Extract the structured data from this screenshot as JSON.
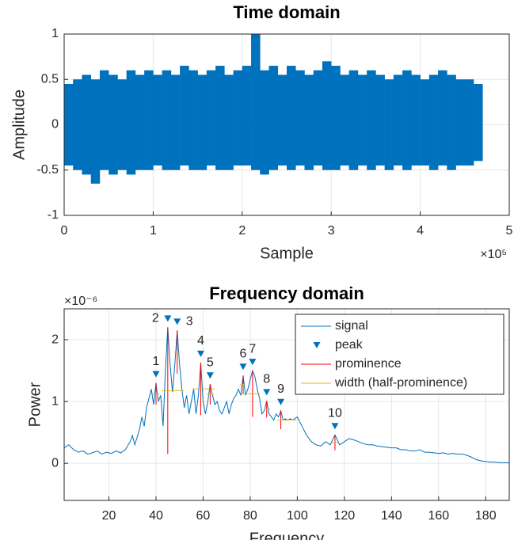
{
  "chart_data": [
    {
      "type": "envelope",
      "title": "Time domain",
      "xlabel": "Sample",
      "ylabel": "Amplitude",
      "x_multiplier": "×10⁵",
      "color": "#0072BD",
      "grid": true,
      "xlim": [
        0,
        5
      ],
      "xticks": [
        0,
        1,
        2,
        3,
        4,
        5
      ],
      "ylim": [
        -1,
        1
      ],
      "yticks": [
        -1,
        -0.5,
        0,
        0.5,
        1
      ],
      "x": [
        0,
        0.1,
        0.2,
        0.3,
        0.4,
        0.5,
        0.6,
        0.7,
        0.8,
        0.9,
        1,
        1.1,
        1.2,
        1.3,
        1.4,
        1.5,
        1.6,
        1.7,
        1.8,
        1.9,
        2,
        2.1,
        2.2,
        2.3,
        2.4,
        2.5,
        2.6,
        2.7,
        2.8,
        2.9,
        3,
        3.1,
        3.2,
        3.3,
        3.4,
        3.5,
        3.6,
        3.7,
        3.8,
        3.9,
        4,
        4.1,
        4.2,
        4.3,
        4.4,
        4.5,
        4.6
      ],
      "upper": [
        0.45,
        0.5,
        0.55,
        0.5,
        0.6,
        0.55,
        0.5,
        0.6,
        0.55,
        0.6,
        0.55,
        0.6,
        0.55,
        0.65,
        0.6,
        0.55,
        0.6,
        0.65,
        0.55,
        0.6,
        0.65,
        1.0,
        0.6,
        0.65,
        0.55,
        0.65,
        0.6,
        0.55,
        0.6,
        0.7,
        0.65,
        0.55,
        0.6,
        0.55,
        0.6,
        0.55,
        0.5,
        0.55,
        0.6,
        0.55,
        0.5,
        0.55,
        0.6,
        0.55,
        0.5,
        0.5,
        0.45
      ],
      "lower": [
        -0.45,
        -0.5,
        -0.55,
        -0.65,
        -0.5,
        -0.55,
        -0.5,
        -0.55,
        -0.5,
        -0.5,
        -0.45,
        -0.5,
        -0.5,
        -0.45,
        -0.5,
        -0.5,
        -0.45,
        -0.5,
        -0.5,
        -0.45,
        -0.45,
        -0.5,
        -0.55,
        -0.5,
        -0.45,
        -0.5,
        -0.45,
        -0.5,
        -0.45,
        -0.5,
        -0.5,
        -0.45,
        -0.5,
        -0.45,
        -0.5,
        -0.45,
        -0.5,
        -0.45,
        -0.5,
        -0.45,
        -0.45,
        -0.5,
        -0.45,
        -0.5,
        -0.45,
        -0.45,
        -0.4
      ]
    },
    {
      "type": "peaks",
      "title": "Frequency domain",
      "xlabel": "Frequency",
      "ylabel": "Power",
      "y_multiplier": "×10⁻⁶",
      "grid": true,
      "legend": "northeast",
      "xlim": [
        1,
        190
      ],
      "xticks": [
        20,
        40,
        60,
        80,
        100,
        120,
        140,
        160,
        180
      ],
      "ylim": [
        -0.6,
        2.5
      ],
      "yticks": [
        0,
        1,
        2
      ],
      "series": [
        {
          "name": "signal",
          "color": "#0072BD",
          "x": [
            1,
            3,
            5,
            7,
            9,
            11,
            13,
            15,
            17,
            19,
            21,
            23,
            25,
            27,
            29,
            30,
            31,
            33,
            34,
            35,
            36,
            37,
            38,
            39,
            40,
            41,
            42,
            43,
            44,
            45,
            46,
            47,
            48,
            49,
            50,
            51,
            52,
            53,
            54,
            55,
            56,
            57,
            58,
            59,
            60,
            61,
            62,
            63,
            64,
            65,
            66,
            67,
            68,
            69,
            70,
            71,
            72,
            73,
            74,
            75,
            76,
            77,
            78,
            79,
            80,
            81,
            82,
            83,
            84,
            85,
            86,
            87,
            88,
            89,
            90,
            91,
            92,
            93,
            94,
            95,
            96,
            97,
            98,
            100,
            102,
            104,
            106,
            108,
            110,
            112,
            114,
            116,
            118,
            120,
            122,
            124,
            126,
            128,
            130,
            132,
            134,
            136,
            138,
            140,
            142,
            144,
            146,
            148,
            150,
            152,
            154,
            156,
            158,
            160,
            162,
            164,
            166,
            168,
            170,
            172,
            174,
            176,
            178,
            180,
            182,
            184,
            186,
            188,
            190
          ],
          "values": [
            0.25,
            0.3,
            0.22,
            0.18,
            0.2,
            0.15,
            0.17,
            0.2,
            0.15,
            0.18,
            0.16,
            0.2,
            0.17,
            0.22,
            0.35,
            0.45,
            0.3,
            0.55,
            0.75,
            0.6,
            0.9,
            1.05,
            1.2,
            0.95,
            1.3,
            1.0,
            1.1,
            0.6,
            1.5,
            2.2,
            1.6,
            1.15,
            1.6,
            2.15,
            1.6,
            1.2,
            0.9,
            1.1,
            0.8,
            1.0,
            1.2,
            0.8,
            1.1,
            1.63,
            1.0,
            0.8,
            1.0,
            1.28,
            1.1,
            0.95,
            1.0,
            0.85,
            0.8,
            0.9,
            1.0,
            0.8,
            0.95,
            1.05,
            1.1,
            1.2,
            1.1,
            1.42,
            1.1,
            1.2,
            1.35,
            1.5,
            1.4,
            1.2,
            1.05,
            0.8,
            0.85,
            1.01,
            0.8,
            0.75,
            0.7,
            0.8,
            0.75,
            0.85,
            0.7,
            0.72,
            0.7,
            0.72,
            0.7,
            0.75,
            0.6,
            0.45,
            0.35,
            0.3,
            0.28,
            0.35,
            0.3,
            0.46,
            0.3,
            0.35,
            0.4,
            0.38,
            0.35,
            0.32,
            0.3,
            0.3,
            0.28,
            0.27,
            0.26,
            0.25,
            0.25,
            0.22,
            0.22,
            0.2,
            0.2,
            0.22,
            0.18,
            0.18,
            0.17,
            0.16,
            0.17,
            0.15,
            0.16,
            0.15,
            0.15,
            0.13,
            0.1,
            0.06,
            0.04,
            0.03,
            0.02,
            0.02,
            0.01,
            0.01,
            0.01
          ]
        },
        {
          "name": "peak",
          "color": "#0072BD",
          "x": [
            40,
            45,
            49,
            59,
            63,
            77,
            81,
            87,
            93,
            116
          ],
          "values": [
            1.3,
            2.2,
            2.15,
            1.63,
            1.28,
            1.42,
            1.5,
            1.01,
            0.85,
            0.46
          ],
          "labels": [
            "1",
            "2",
            "3",
            "4",
            "5",
            "6",
            "7",
            "8",
            "9",
            "10"
          ]
        },
        {
          "name": "prominence",
          "color": "#FF0000",
          "values": [
            0.35,
            2.05,
            0.7,
            0.85,
            0.33,
            0.3,
            0.75,
            0.27,
            0.3,
            0.25
          ]
        },
        {
          "name": "width (half-prominence)",
          "color": "#EDB120",
          "left": [
            38.5,
            42.5,
            47.5,
            55.5,
            61.5,
            75.5,
            76,
            86,
            91.5,
            114.5
          ],
          "right": [
            41.5,
            52,
            50.5,
            65,
            64.5,
            78,
            84,
            88.5,
            99.5,
            117.5
          ]
        }
      ]
    }
  ]
}
